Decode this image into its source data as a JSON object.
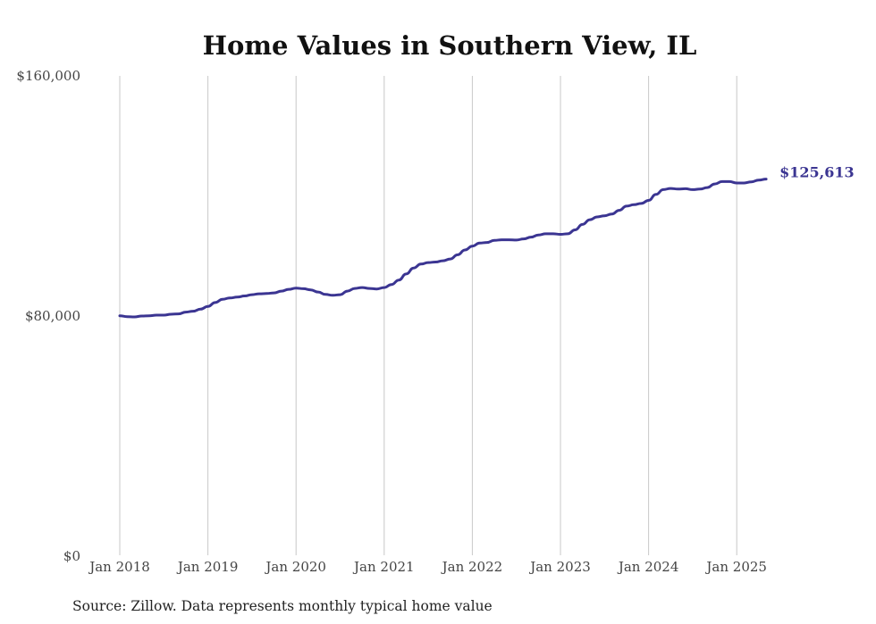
{
  "chart_data": {
    "type": "line",
    "title": "Home Values in Southern View, IL",
    "source": "Source: Zillow. Data represents monthly typical home value",
    "y_ticks": [
      "$160,000",
      "$80,000",
      "$0"
    ],
    "y_tick_values": [
      160000,
      80000,
      0
    ],
    "ylim": [
      0,
      160000
    ],
    "x_ticks": [
      "Jan 2018",
      "Jan 2019",
      "Jan 2020",
      "Jan 2021",
      "Jan 2022",
      "Jan 2023",
      "Jan 2024",
      "Jan 2025"
    ],
    "grid": "vertical lines at each January",
    "end_label": "$125,613",
    "series": [
      {
        "color": "#3b3592",
        "points": [
          [
            "2018-01",
            80100
          ],
          [
            "2018-02",
            79800
          ],
          [
            "2018-03",
            79700
          ],
          [
            "2018-04",
            80000
          ],
          [
            "2018-05",
            80100
          ],
          [
            "2018-06",
            80300
          ],
          [
            "2018-07",
            80300
          ],
          [
            "2018-08",
            80600
          ],
          [
            "2018-09",
            80700
          ],
          [
            "2018-10",
            81300
          ],
          [
            "2018-11",
            81600
          ],
          [
            "2018-12",
            82300
          ],
          [
            "2019-01",
            83200
          ],
          [
            "2019-02",
            84500
          ],
          [
            "2019-03",
            85600
          ],
          [
            "2019-04",
            86000
          ],
          [
            "2019-05",
            86300
          ],
          [
            "2019-06",
            86700
          ],
          [
            "2019-07",
            87100
          ],
          [
            "2019-08",
            87400
          ],
          [
            "2019-09",
            87500
          ],
          [
            "2019-10",
            87700
          ],
          [
            "2019-11",
            88300
          ],
          [
            "2019-12",
            88900
          ],
          [
            "2020-01",
            89300
          ],
          [
            "2020-02",
            89100
          ],
          [
            "2020-03",
            88700
          ],
          [
            "2020-04",
            88000
          ],
          [
            "2020-05",
            87200
          ],
          [
            "2020-06",
            86900
          ],
          [
            "2020-07",
            87100
          ],
          [
            "2020-08",
            88300
          ],
          [
            "2020-09",
            89200
          ],
          [
            "2020-10",
            89500
          ],
          [
            "2020-11",
            89200
          ],
          [
            "2020-12",
            89000
          ],
          [
            "2021-01",
            89500
          ],
          [
            "2021-02",
            90500
          ],
          [
            "2021-03",
            92000
          ],
          [
            "2021-04",
            94000
          ],
          [
            "2021-05",
            96000
          ],
          [
            "2021-06",
            97300
          ],
          [
            "2021-07",
            97800
          ],
          [
            "2021-08",
            98000
          ],
          [
            "2021-09",
            98400
          ],
          [
            "2021-10",
            99000
          ],
          [
            "2021-11",
            100400
          ],
          [
            "2021-12",
            102000
          ],
          [
            "2022-01",
            103300
          ],
          [
            "2022-02",
            104300
          ],
          [
            "2022-03",
            104500
          ],
          [
            "2022-04",
            105200
          ],
          [
            "2022-05",
            105400
          ],
          [
            "2022-06",
            105400
          ],
          [
            "2022-07",
            105300
          ],
          [
            "2022-08",
            105700
          ],
          [
            "2022-09",
            106300
          ],
          [
            "2022-10",
            107000
          ],
          [
            "2022-11",
            107400
          ],
          [
            "2022-12",
            107400
          ],
          [
            "2023-01",
            107200
          ],
          [
            "2023-02",
            107400
          ],
          [
            "2023-03",
            108700
          ],
          [
            "2023-04",
            110500
          ],
          [
            "2023-05",
            112100
          ],
          [
            "2023-06",
            113000
          ],
          [
            "2023-07",
            113400
          ],
          [
            "2023-08",
            114000
          ],
          [
            "2023-09",
            115200
          ],
          [
            "2023-10",
            116600
          ],
          [
            "2023-11",
            117100
          ],
          [
            "2023-12",
            117500
          ],
          [
            "2024-01",
            118500
          ],
          [
            "2024-02",
            120500
          ],
          [
            "2024-03",
            122100
          ],
          [
            "2024-04",
            122500
          ],
          [
            "2024-05",
            122300
          ],
          [
            "2024-06",
            122400
          ],
          [
            "2024-07",
            122100
          ],
          [
            "2024-08",
            122300
          ],
          [
            "2024-09",
            122800
          ],
          [
            "2024-10",
            124000
          ],
          [
            "2024-11",
            124800
          ],
          [
            "2024-12",
            124800
          ],
          [
            "2025-01",
            124300
          ],
          [
            "2025-02",
            124300
          ],
          [
            "2025-03",
            124700
          ],
          [
            "2025-04",
            125300
          ],
          [
            "2025-05",
            125613
          ]
        ]
      }
    ]
  }
}
